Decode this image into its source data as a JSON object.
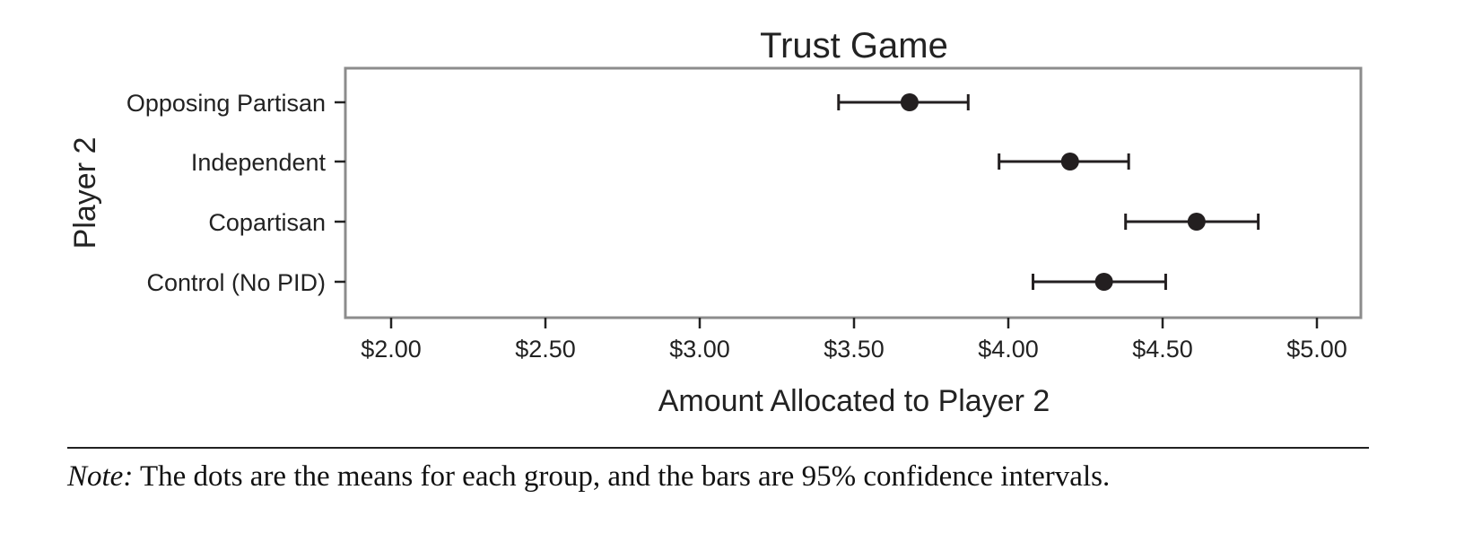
{
  "chart_data": {
    "type": "scatter",
    "title": "Trust Game",
    "xlabel": "Amount Allocated to Player 2",
    "ylabel": "Player 2",
    "xlim": [
      1.85,
      5.15
    ],
    "xticks": [
      2.0,
      2.5,
      3.0,
      3.5,
      4.0,
      4.5,
      5.0
    ],
    "xtick_labels": [
      "$2.00",
      "$2.50",
      "$3.00",
      "$3.50",
      "$4.00",
      "$4.50",
      "$5.00"
    ],
    "categories": [
      "Opposing Partisan",
      "Independent",
      "Copartisan",
      "Control (No PID)"
    ],
    "series": [
      {
        "means": [
          3.68,
          4.2,
          4.61,
          4.31
        ],
        "ci_low": [
          3.45,
          3.97,
          4.38,
          4.08
        ],
        "ci_high": [
          3.87,
          4.39,
          4.81,
          4.51
        ]
      }
    ],
    "grid": false,
    "legend": "none",
    "colors": {
      "marker": "#231f20",
      "frame": "#8c8c8c",
      "text": "#222222"
    }
  },
  "note": {
    "label": "Note:",
    "text": " The dots are the means for each group, and the bars are 95% confidence intervals."
  }
}
